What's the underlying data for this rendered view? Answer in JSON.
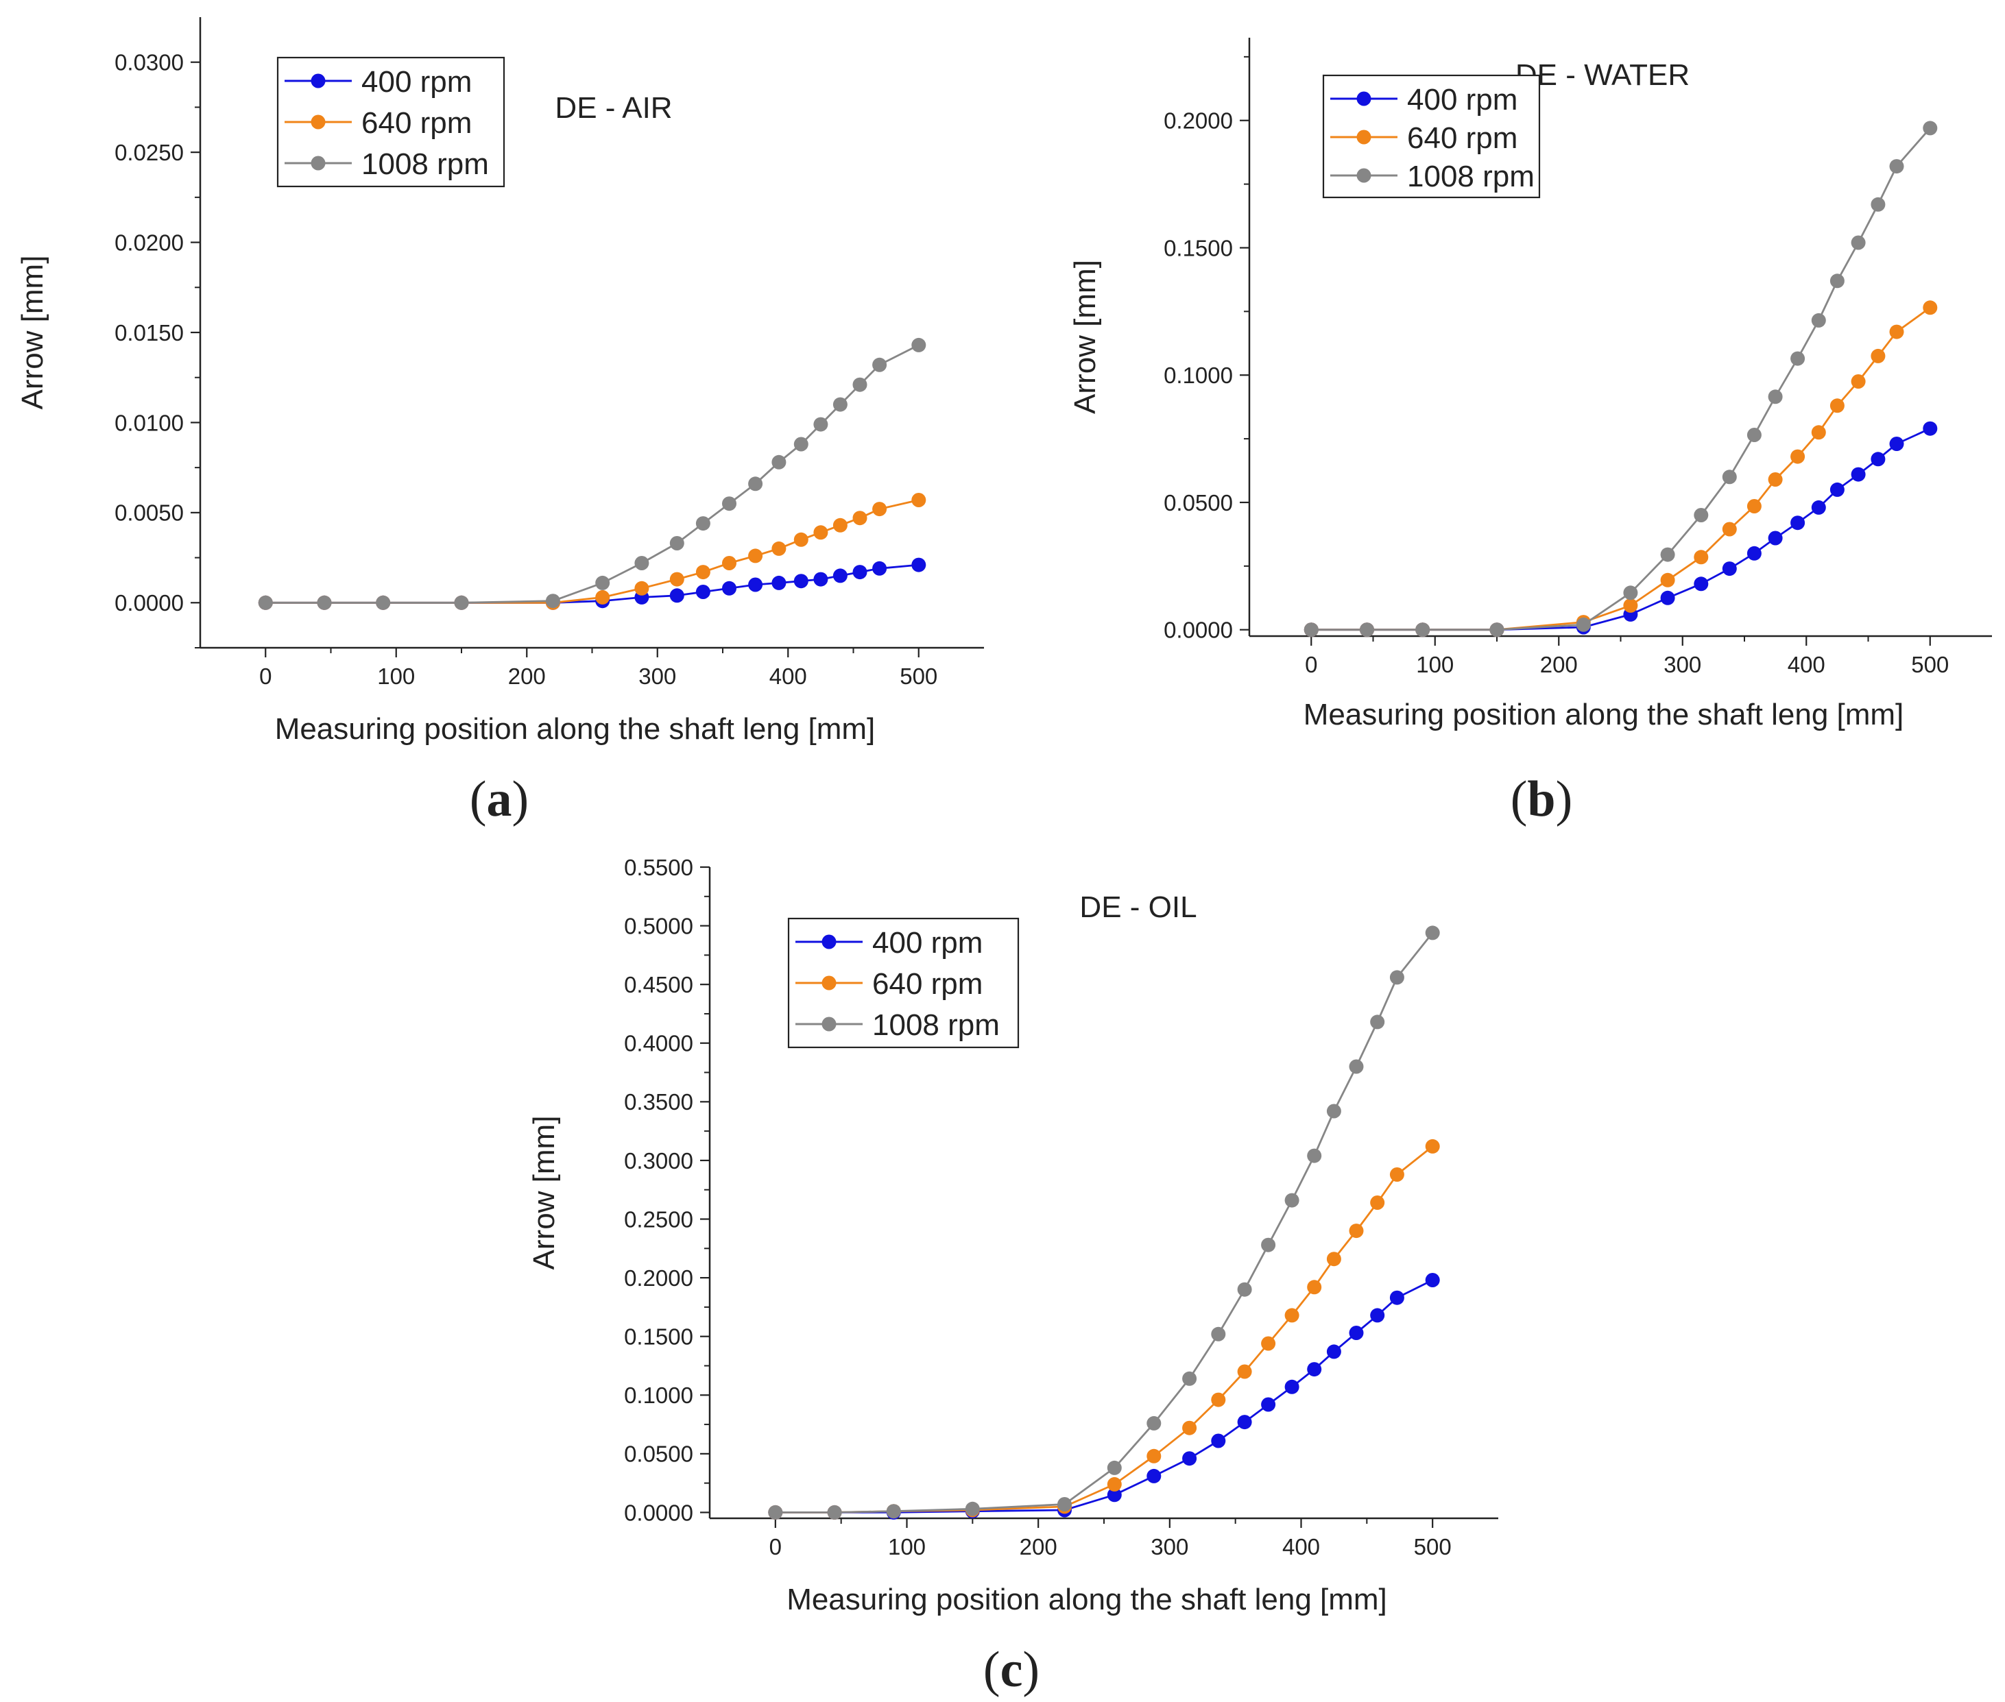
{
  "chart_data": [
    {
      "id": "a",
      "type": "line",
      "title": "DE - AIR",
      "xlabel": "Measuring position along the shaft leng [mm]",
      "ylabel": "Arrow [mm]",
      "xlim": [
        -50,
        550
      ],
      "ylim": [
        -0.0025,
        0.0325
      ],
      "xticks": [
        0,
        100,
        200,
        300,
        400,
        500
      ],
      "xtick_labels": [
        "0",
        "100",
        "200",
        "300",
        "400",
        "500"
      ],
      "yticks": [
        0,
        0.005,
        0.01,
        0.015,
        0.02,
        0.025,
        0.03
      ],
      "ytick_labels": [
        "0.0000",
        "0.0050",
        "0.0100",
        "0.0150",
        "0.0200",
        "0.0250",
        "0.0300"
      ],
      "legend_position": "top-left",
      "grid": false,
      "panel_label": "a",
      "series": [
        {
          "name": "400 rpm",
          "color": "#1010e0",
          "x": [
            0,
            45,
            90,
            150,
            220,
            258,
            288,
            315,
            335,
            355,
            375,
            393,
            410,
            425,
            440,
            455,
            470,
            500
          ],
          "values": [
            0,
            0,
            0,
            0,
            0,
            0.0001,
            0.0003,
            0.0004,
            0.0006,
            0.0008,
            0.001,
            0.0011,
            0.0012,
            0.0013,
            0.0015,
            0.0017,
            0.0019,
            0.0021
          ]
        },
        {
          "name": "640 rpm",
          "color": "#f08418",
          "x": [
            0,
            45,
            90,
            150,
            220,
            258,
            288,
            315,
            335,
            355,
            375,
            393,
            410,
            425,
            440,
            455,
            470,
            500
          ],
          "values": [
            0,
            0,
            0,
            0,
            0,
            0.0003,
            0.0008,
            0.0013,
            0.0017,
            0.0022,
            0.0026,
            0.003,
            0.0035,
            0.0039,
            0.0043,
            0.0047,
            0.0052,
            0.0057
          ]
        },
        {
          "name": "1008 rpm",
          "color": "#868686",
          "x": [
            0,
            45,
            90,
            150,
            220,
            258,
            288,
            315,
            335,
            355,
            375,
            393,
            410,
            425,
            440,
            455,
            470,
            500
          ],
          "values": [
            0,
            0,
            0,
            0,
            0.0001,
            0.0011,
            0.0022,
            0.0033,
            0.0044,
            0.0055,
            0.0066,
            0.0078,
            0.0088,
            0.0099,
            0.011,
            0.0121,
            0.0132,
            0.0143
          ]
        }
      ]
    },
    {
      "id": "b",
      "type": "line",
      "title": "DE - WATER",
      "xlabel": "Measuring position along the shaft leng [mm]",
      "ylabel": "Arrow [mm]",
      "xlim": [
        -50,
        550
      ],
      "ylim": [
        -0.0025,
        0.2325
      ],
      "xticks": [
        0,
        100,
        200,
        300,
        400,
        500
      ],
      "xtick_labels": [
        "0",
        "100",
        "200",
        "300",
        "400",
        "500"
      ],
      "yticks": [
        0,
        0.05,
        0.1,
        0.15,
        0.2
      ],
      "ytick_labels": [
        "0.0000",
        "0.0500",
        "0.1000",
        "0.1500",
        "0.2000"
      ],
      "legend_position": "top-left",
      "grid": false,
      "panel_label": "b",
      "series": [
        {
          "name": "400 rpm",
          "color": "#1010e0",
          "x": [
            0,
            45,
            90,
            150,
            220,
            258,
            288,
            315,
            338,
            358,
            375,
            393,
            410,
            425,
            442,
            458,
            473,
            500
          ],
          "values": [
            0,
            0,
            0,
            0,
            0.001,
            0.006,
            0.0125,
            0.018,
            0.024,
            0.03,
            0.036,
            0.042,
            0.048,
            0.055,
            0.061,
            0.067,
            0.073,
            0.079
          ]
        },
        {
          "name": "640 rpm",
          "color": "#f08418",
          "x": [
            0,
            45,
            90,
            150,
            220,
            258,
            288,
            315,
            338,
            358,
            375,
            393,
            410,
            425,
            442,
            458,
            473,
            500
          ],
          "values": [
            0,
            0,
            0,
            0,
            0.003,
            0.0095,
            0.0195,
            0.0285,
            0.0395,
            0.0485,
            0.059,
            0.068,
            0.0775,
            0.088,
            0.0975,
            0.1075,
            0.117,
            0.1265
          ]
        },
        {
          "name": "1008 rpm",
          "color": "#868686",
          "x": [
            0,
            45,
            90,
            150,
            220,
            258,
            288,
            315,
            338,
            358,
            375,
            393,
            410,
            425,
            442,
            458,
            473,
            500
          ],
          "values": [
            0,
            0,
            0,
            0,
            0.002,
            0.0145,
            0.0295,
            0.045,
            0.06,
            0.0765,
            0.0915,
            0.1065,
            0.1215,
            0.137,
            0.152,
            0.167,
            0.182,
            0.197
          ]
        }
      ]
    },
    {
      "id": "c",
      "type": "line",
      "title": "DE - OIL",
      "xlabel": "Measuring position along the shaft leng [mm]",
      "ylabel": "Arrow [mm]",
      "xlim": [
        -50,
        550
      ],
      "ylim": [
        -0.005,
        0.55
      ],
      "xticks": [
        0,
        100,
        200,
        300,
        400,
        500
      ],
      "xtick_labels": [
        "0",
        "100",
        "200",
        "300",
        "400",
        "500"
      ],
      "yticks": [
        0,
        0.05,
        0.1,
        0.15,
        0.2,
        0.25,
        0.3,
        0.35,
        0.4,
        0.45,
        0.5,
        0.55
      ],
      "ytick_labels": [
        "0.0000",
        "0.0500",
        "0.1000",
        "0.1500",
        "0.2000",
        "0.2500",
        "0.3000",
        "0.3500",
        "0.4000",
        "0.4500",
        "0.5000",
        "0.5500"
      ],
      "legend_position": "top-left",
      "grid": false,
      "panel_label": "c",
      "series": [
        {
          "name": "400 rpm",
          "color": "#1010e0",
          "x": [
            0,
            45,
            90,
            150,
            220,
            258,
            288,
            315,
            337,
            357,
            375,
            393,
            410,
            425,
            442,
            458,
            473,
            500
          ],
          "values": [
            0,
            0,
            0,
            0.001,
            0.002,
            0.015,
            0.031,
            0.046,
            0.061,
            0.077,
            0.092,
            0.107,
            0.122,
            0.137,
            0.153,
            0.168,
            0.183,
            0.198
          ]
        },
        {
          "name": "640 rpm",
          "color": "#f08418",
          "x": [
            0,
            45,
            90,
            150,
            220,
            258,
            288,
            315,
            337,
            357,
            375,
            393,
            410,
            425,
            442,
            458,
            473,
            500
          ],
          "values": [
            0,
            0,
            0.001,
            0.002,
            0.005,
            0.024,
            0.048,
            0.072,
            0.096,
            0.12,
            0.144,
            0.168,
            0.192,
            0.216,
            0.24,
            0.264,
            0.288,
            0.312
          ]
        },
        {
          "name": "1008 rpm",
          "color": "#868686",
          "x": [
            0,
            45,
            90,
            150,
            220,
            258,
            288,
            315,
            337,
            357,
            375,
            393,
            410,
            425,
            442,
            458,
            473,
            500
          ],
          "values": [
            0,
            0,
            0.001,
            0.003,
            0.007,
            0.038,
            0.076,
            0.114,
            0.152,
            0.19,
            0.228,
            0.266,
            0.304,
            0.342,
            0.38,
            0.418,
            0.456,
            0.494
          ]
        }
      ]
    }
  ]
}
